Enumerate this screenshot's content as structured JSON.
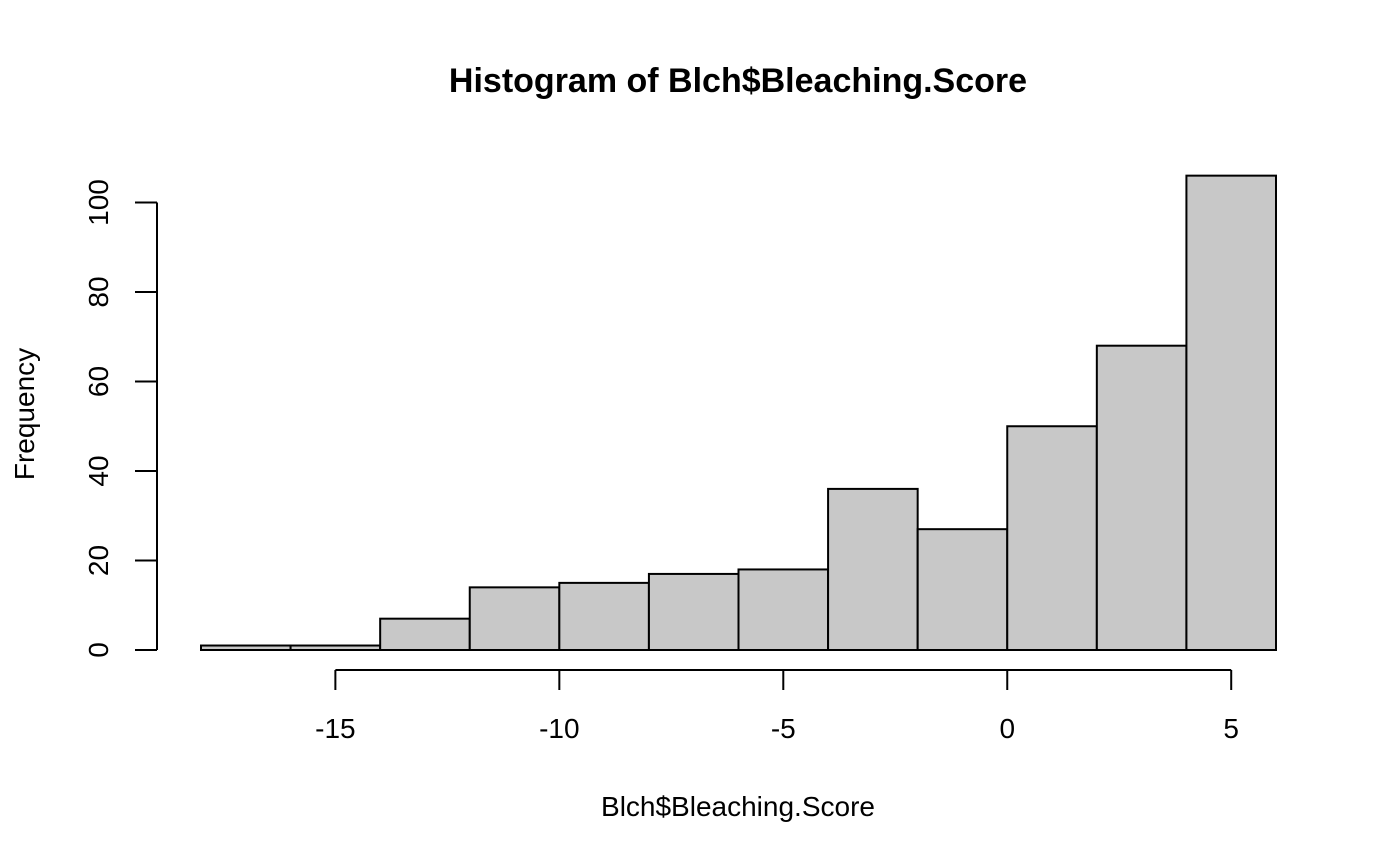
{
  "chart_data": {
    "type": "bar",
    "subtype": "histogram",
    "title": "Histogram of Blch$Bleaching.Score",
    "xlabel": "Blch$Bleaching.Score",
    "ylabel": "Frequency",
    "bins": [
      {
        "x0": -18,
        "x1": -16,
        "count": 1
      },
      {
        "x0": -16,
        "x1": -14,
        "count": 1
      },
      {
        "x0": -14,
        "x1": -12,
        "count": 7
      },
      {
        "x0": -12,
        "x1": -10,
        "count": 14
      },
      {
        "x0": -10,
        "x1": -8,
        "count": 15
      },
      {
        "x0": -8,
        "x1": -6,
        "count": 17
      },
      {
        "x0": -6,
        "x1": -4,
        "count": 18
      },
      {
        "x0": -4,
        "x1": -2,
        "count": 36
      },
      {
        "x0": -2,
        "x1": 0,
        "count": 27
      },
      {
        "x0": 0,
        "x1": 2,
        "count": 50
      },
      {
        "x0": 2,
        "x1": 4,
        "count": 68
      },
      {
        "x0": 4,
        "x1": 6,
        "count": 106
      }
    ],
    "xlim": [
      -18,
      6
    ],
    "ylim": [
      0,
      106
    ],
    "xticks": [
      -15,
      -10,
      -5,
      0,
      5
    ],
    "xtick_labels": [
      "-15",
      "-10",
      "-5",
      "0",
      "5"
    ],
    "yticks": [
      0,
      20,
      40,
      60,
      80,
      100
    ],
    "ytick_labels": [
      "0",
      "20",
      "40",
      "60",
      "80",
      "100"
    ],
    "bar_color": "#c8c8c8",
    "edge_color": "#000000",
    "grid": false,
    "legend": "none"
  }
}
